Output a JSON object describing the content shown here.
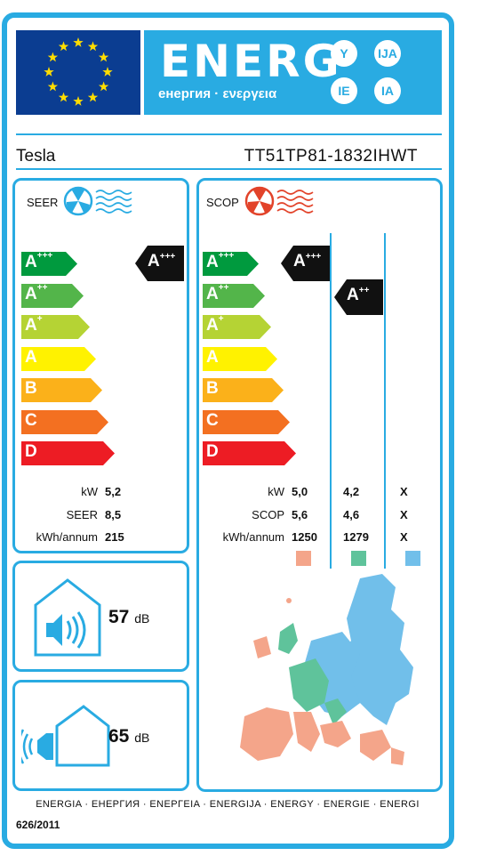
{
  "header": {
    "energy_word": "ENERG",
    "energy_sub": "енергия · ενεργεια",
    "badges": [
      "Y",
      "IJA",
      "IE",
      "IA"
    ]
  },
  "product": {
    "brand": "Tesla",
    "model": "TT51TP81-1832IHWT"
  },
  "scale_classes": [
    "A+++",
    "A++",
    "A+",
    "A",
    "B",
    "C",
    "D"
  ],
  "colors": {
    "frame": "#29abe2",
    "A+++": "#009a3e",
    "A++": "#53b54a",
    "A+": "#b5d334",
    "A": "#fff200",
    "B": "#fbb11a",
    "C": "#f37021",
    "D": "#ed1c24",
    "warm": "#f4a58a",
    "average": "#5fc39b",
    "cold": "#71bfea"
  },
  "seer": {
    "label": "SEER",
    "icon": "fan-cooling-icon",
    "indicator": "A+++",
    "rows": [
      {
        "label": "kW",
        "value": "5,2"
      },
      {
        "label": "SEER",
        "value": "8,5"
      },
      {
        "label": "kWh/annum",
        "value": "215"
      }
    ]
  },
  "scop": {
    "label": "SCOP",
    "icon": "fan-heating-icon",
    "indicators": [
      "A+++",
      "A++"
    ],
    "rows": [
      {
        "label": "kW",
        "values": [
          "5,0",
          "4,2",
          "X"
        ]
      },
      {
        "label": "SCOP",
        "values": [
          "5,6",
          "4,6",
          "X"
        ]
      },
      {
        "label": "kWh/annum",
        "values": [
          "1250",
          "1279",
          "X"
        ]
      }
    ],
    "zone_swatches": [
      "warm",
      "average",
      "cold"
    ]
  },
  "noise": {
    "indoor": {
      "value": "57",
      "unit": "dB",
      "icon": "indoor-speaker-icon"
    },
    "outdoor": {
      "value": "65",
      "unit": "dB",
      "icon": "outdoor-speaker-icon"
    }
  },
  "footer": {
    "languages": "ENERGIA · ЕНЕРГИЯ · ΕΝΕΡΓΕΙΑ · ENERGIJA · ENERGY · ENERGIE · ENERGI",
    "regulation": "626/2011"
  }
}
